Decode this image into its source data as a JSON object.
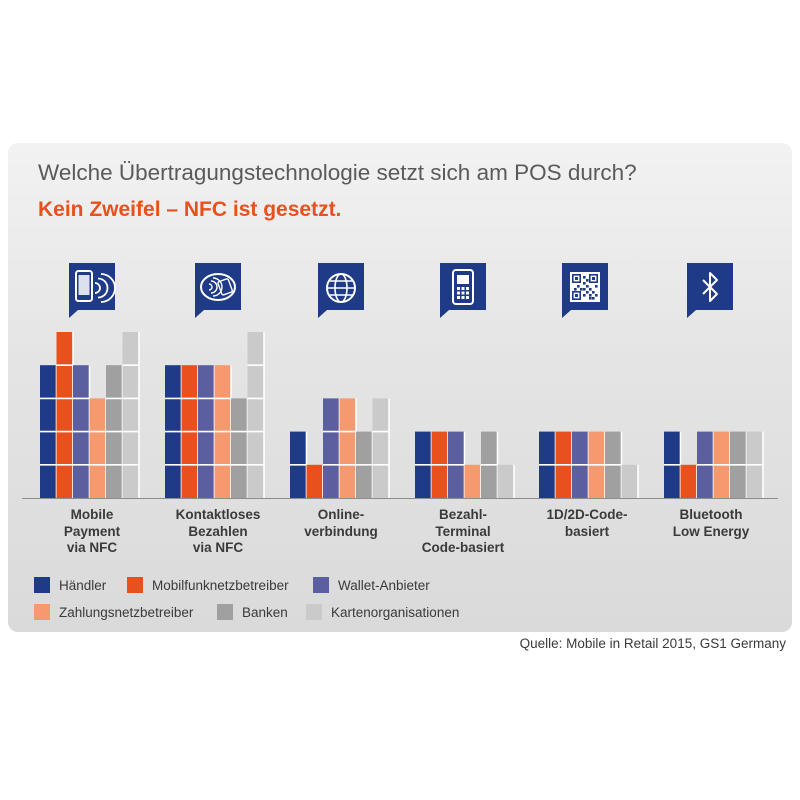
{
  "title": "Welche Übertragungstechnologie setzt sich am POS durch?",
  "subtitle": "Kein Zweifel – NFC ist gesetzt.",
  "source": "Quelle: Mobile in Retail 2015, GS1 Germany",
  "colors": {
    "accent": "#e8501e",
    "icon_bg": "#1f3a86",
    "axis": "#8c8c8c",
    "segment_line": "#ffffff"
  },
  "chart_data": {
    "type": "bar",
    "grouped": true,
    "segmented_units": true,
    "ylim": [
      0,
      5
    ],
    "grid": false,
    "legend_position": "bottom",
    "categories": [
      "Mobile\nPayment\nvia NFC",
      "Kontaktloses\nBezahlen\nvia NFC",
      "Online-\nverbindung",
      "Bezahl-\nTerminal\nCode-basiert",
      "1D/2D-Code-\nbasiert",
      "Bluetooth\nLow Energy"
    ],
    "category_icons": [
      "smartphone-nfc-icon",
      "contactless-card-icon",
      "globe-icon",
      "payment-terminal-icon",
      "qr-code-icon",
      "bluetooth-icon"
    ],
    "series": [
      {
        "name": "Händler",
        "color": "#1f3a86",
        "values": [
          4,
          4,
          2,
          2,
          2,
          2
        ]
      },
      {
        "name": "Mobilfunknetzbetreiber",
        "color": "#e8501e",
        "values": [
          5,
          4,
          1,
          2,
          2,
          1
        ]
      },
      {
        "name": "Wallet-Anbieter",
        "color": "#5c5f9f",
        "values": [
          4,
          4,
          3,
          2,
          2,
          2
        ]
      },
      {
        "name": "Zahlungsnetzbetreiber",
        "color": "#f49a6e",
        "values": [
          3,
          4,
          3,
          1,
          2,
          2
        ]
      },
      {
        "name": "Banken",
        "color": "#a0a0a0",
        "values": [
          4,
          3,
          2,
          2,
          2,
          2
        ]
      },
      {
        "name": "Kartenorganisationen",
        "color": "#cacaca",
        "values": [
          5,
          5,
          3,
          1,
          1,
          2
        ]
      }
    ]
  }
}
